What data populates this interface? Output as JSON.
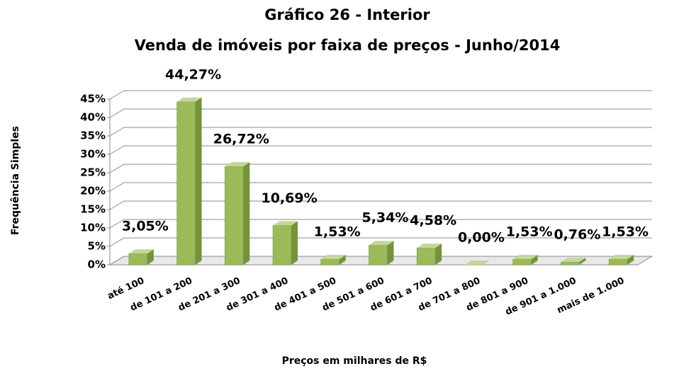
{
  "chart_data": {
    "type": "bar3d",
    "title": "Gráfico 26 - Interior",
    "subtitle": "Venda de imóveis por faixa de preços - Junho/2014",
    "y_label": "Frequência Simples",
    "x_label": "Preços em milhares de R$",
    "categories": [
      "até 100",
      "de 101 a 200",
      "de 201 a 300",
      "de 301 a 400",
      "de 401 a 500",
      "de 501 a 600",
      "de 601 a 700",
      "de 701 a 800",
      "de 801 a 900",
      "de 901 a 1.000",
      "mais de 1.000"
    ],
    "values": [
      3.05,
      44.27,
      26.72,
      10.69,
      1.53,
      5.34,
      4.58,
      0.0,
      1.53,
      0.76,
      1.53
    ],
    "value_labels": [
      "3,05%",
      "44,27%",
      "26,72%",
      "10,69%",
      "1,53%",
      "5,34%",
      "4,58%",
      "0,00%",
      "1,53%",
      "0,76%",
      "1,53%"
    ],
    "color": "#9bbb59",
    "ylim": [
      0,
      45
    ],
    "yticks": [
      {
        "value": 0,
        "label": "0%"
      },
      {
        "value": 5,
        "label": "5%"
      },
      {
        "value": 10,
        "label": "10%"
      },
      {
        "value": 15,
        "label": "15%"
      },
      {
        "value": 20,
        "label": "20%"
      },
      {
        "value": 25,
        "label": "25%"
      },
      {
        "value": 30,
        "label": "30%"
      },
      {
        "value": 35,
        "label": "35%"
      },
      {
        "value": 40,
        "label": "40%"
      },
      {
        "value": 45,
        "label": "45%"
      }
    ],
    "grid": true
  }
}
